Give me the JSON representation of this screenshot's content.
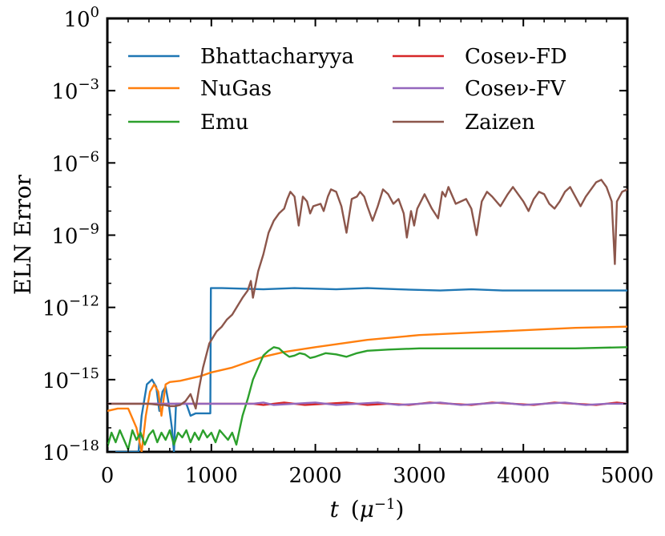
{
  "chart_data": {
    "type": "line",
    "title": "",
    "xlabel": "t (μ⁻¹)",
    "ylabel": "ELN Error",
    "xlim": [
      0,
      5000
    ],
    "ylim_log10": [
      -18,
      0
    ],
    "yscale": "log",
    "x_ticks": [
      0,
      1000,
      2000,
      3000,
      4000,
      5000
    ],
    "x_tick_labels": [
      "0",
      "1000",
      "2000",
      "3000",
      "4000",
      "5000"
    ],
    "y_ticks_exp": [
      -18,
      -15,
      -12,
      -9,
      -6,
      -3,
      0
    ],
    "y_tick_labels": [
      "10",
      "10",
      "10",
      "10",
      "10",
      "10",
      "10"
    ],
    "y_tick_exponents": [
      "−18",
      "−15",
      "−12",
      "−9",
      "−6",
      "−3",
      "0"
    ],
    "grid": false,
    "legend_position": "top",
    "series": [
      {
        "name": "Bhattacharyya",
        "color": "#1f77b4",
        "x": [
          0,
          300,
          330,
          380,
          430,
          470,
          500,
          530,
          560,
          590,
          620,
          640,
          660,
          700,
          760,
          800,
          850,
          900,
          960,
          990,
          995,
          1000,
          1100,
          1500,
          1800,
          2200,
          2500,
          2800,
          3200,
          3500,
          3800,
          4200,
          4500,
          4800,
          5000
        ],
        "log10_y": [
          -18,
          -18,
          -16.5,
          -15.2,
          -15,
          -15.3,
          -16.3,
          -15.5,
          -15.3,
          -16,
          -17,
          -18,
          -16,
          -16,
          -16,
          -16.5,
          -16.4,
          -16.4,
          -16.4,
          -16.4,
          -11.2,
          -11.2,
          -11.2,
          -11.25,
          -11.2,
          -11.25,
          -11.2,
          -11.25,
          -11.3,
          -11.25,
          -11.3,
          -11.3,
          -11.3,
          -11.3,
          -11.3
        ]
      },
      {
        "name": "NuGas",
        "color": "#ff7f0e",
        "x": [
          0,
          100,
          200,
          280,
          330,
          370,
          410,
          450,
          490,
          520,
          560,
          600,
          700,
          800,
          900,
          1000,
          1100,
          1200,
          1300,
          1400,
          1500,
          1700,
          2000,
          2500,
          3000,
          3500,
          4000,
          4500,
          5000
        ],
        "log10_y": [
          -16.3,
          -16.2,
          -16.2,
          -17,
          -18,
          -16.5,
          -15.5,
          -15.2,
          -15.5,
          -16.5,
          -15.2,
          -15.1,
          -15.05,
          -14.95,
          -14.85,
          -14.7,
          -14.6,
          -14.5,
          -14.35,
          -14.2,
          -14.05,
          -13.85,
          -13.65,
          -13.35,
          -13.15,
          -13.05,
          -12.95,
          -12.85,
          -12.8
        ]
      },
      {
        "name": "Emu",
        "color": "#2ca02c",
        "x": [
          0,
          40,
          80,
          120,
          160,
          200,
          240,
          280,
          320,
          360,
          400,
          440,
          480,
          520,
          560,
          600,
          640,
          680,
          720,
          760,
          800,
          840,
          880,
          920,
          960,
          1000,
          1040,
          1080,
          1120,
          1160,
          1200,
          1240,
          1300,
          1350,
          1400,
          1450,
          1500,
          1550,
          1600,
          1650,
          1700,
          1750,
          1800,
          1850,
          1900,
          1950,
          2000,
          2100,
          2200,
          2300,
          2400,
          2500,
          2700,
          3000,
          3500,
          4000,
          4500,
          5000
        ],
        "log10_y": [
          -17.8,
          -17.2,
          -17.6,
          -17.1,
          -17.5,
          -17.9,
          -17.1,
          -17.5,
          -17.2,
          -17.7,
          -17.3,
          -17.1,
          -17.6,
          -17.2,
          -17.5,
          -17.1,
          -17.7,
          -17.2,
          -17.4,
          -17.1,
          -17.6,
          -17.2,
          -17.5,
          -17.1,
          -17.4,
          -17.2,
          -17.6,
          -17.1,
          -17.3,
          -17.5,
          -17.2,
          -17.7,
          -16.5,
          -15.8,
          -15.0,
          -14.5,
          -14.0,
          -13.8,
          -13.65,
          -13.7,
          -13.9,
          -14.05,
          -14.0,
          -13.9,
          -13.95,
          -14.1,
          -14.05,
          -13.9,
          -13.95,
          -14.05,
          -13.9,
          -13.8,
          -13.75,
          -13.7,
          -13.7,
          -13.7,
          -13.7,
          -13.65
        ]
      },
      {
        "name": "Coseν-FD",
        "color": "#d62728",
        "x": [
          0,
          300,
          600,
          900,
          1200,
          1400,
          1500,
          1700,
          1900,
          2100,
          2300,
          2500,
          2700,
          2900,
          3100,
          3300,
          3500,
          3700,
          3900,
          4100,
          4300,
          4500,
          4700,
          4900,
          5000
        ],
        "log10_y": [
          -16,
          -16,
          -16,
          -16,
          -16,
          -16,
          -16.05,
          -15.95,
          -16.05,
          -16,
          -15.95,
          -16.05,
          -16,
          -16.05,
          -15.95,
          -16,
          -16.05,
          -15.95,
          -16,
          -16.05,
          -15.95,
          -16,
          -16.05,
          -15.95,
          -16
        ]
      },
      {
        "name": "Coseν-FV",
        "color": "#9467bd",
        "x": [
          0,
          300,
          600,
          900,
          1200,
          1400,
          1500,
          1600,
          1800,
          2000,
          2200,
          2400,
          2600,
          2800,
          3000,
          3200,
          3400,
          3600,
          3800,
          4000,
          4200,
          4400,
          4600,
          4800,
          5000
        ],
        "log10_y": [
          -16,
          -16,
          -16,
          -16,
          -16,
          -16,
          -15.95,
          -16.05,
          -16,
          -15.95,
          -16.05,
          -16,
          -15.95,
          -16.05,
          -16,
          -15.95,
          -16.05,
          -16,
          -15.95,
          -16.05,
          -16,
          -15.95,
          -16.05,
          -16,
          -16
        ]
      },
      {
        "name": "Zaizen",
        "color": "#8c564b",
        "x": [
          0,
          200,
          400,
          500,
          550,
          600,
          650,
          700,
          750,
          800,
          850,
          880,
          920,
          980,
          1050,
          1100,
          1150,
          1200,
          1300,
          1350,
          1380,
          1400,
          1450,
          1500,
          1550,
          1600,
          1650,
          1700,
          1730,
          1760,
          1800,
          1840,
          1880,
          1920,
          1950,
          1980,
          2050,
          2080,
          2120,
          2150,
          2200,
          2250,
          2300,
          2350,
          2400,
          2430,
          2470,
          2500,
          2550,
          2600,
          2650,
          2700,
          2750,
          2800,
          2850,
          2880,
          2920,
          2950,
          2980,
          3050,
          3120,
          3180,
          3220,
          3250,
          3280,
          3350,
          3450,
          3500,
          3550,
          3600,
          3650,
          3700,
          3780,
          3850,
          3900,
          3950,
          4000,
          4050,
          4100,
          4150,
          4200,
          4250,
          4300,
          4350,
          4400,
          4450,
          4500,
          4550,
          4600,
          4650,
          4700,
          4750,
          4800,
          4850,
          4880,
          4900,
          4950,
          5000
        ],
        "log10_y": [
          -16,
          -16,
          -16,
          -16.05,
          -16.05,
          -16.1,
          -16.1,
          -16.05,
          -15.9,
          -15.6,
          -16.2,
          -15.4,
          -14.5,
          -13.5,
          -13,
          -12.8,
          -12.5,
          -12.3,
          -11.6,
          -11.3,
          -10.9,
          -11.6,
          -10.5,
          -9.8,
          -8.9,
          -8.4,
          -8.1,
          -7.9,
          -7.5,
          -7.2,
          -7.4,
          -8.6,
          -7.4,
          -7.6,
          -8.1,
          -7.8,
          -7.7,
          -8.0,
          -7.4,
          -7.1,
          -7.2,
          -7.8,
          -8.9,
          -7.5,
          -7.4,
          -7.2,
          -7.4,
          -7.8,
          -8.4,
          -7.8,
          -7.1,
          -7.3,
          -7.7,
          -7.5,
          -8.1,
          -9.1,
          -8.0,
          -8.6,
          -7.9,
          -7.3,
          -7.9,
          -8.3,
          -7.2,
          -7.4,
          -7.0,
          -7.7,
          -7.5,
          -7.9,
          -9.0,
          -7.6,
          -7.2,
          -7.4,
          -7.8,
          -7.3,
          -7.0,
          -7.3,
          -7.6,
          -8.0,
          -7.5,
          -7.2,
          -7.3,
          -7.7,
          -7.9,
          -7.6,
          -7.2,
          -7.0,
          -7.4,
          -7.8,
          -7.4,
          -7.1,
          -6.8,
          -6.7,
          -7.0,
          -7.6,
          -10.2,
          -7.6,
          -7.2,
          -7.1
        ]
      }
    ]
  }
}
